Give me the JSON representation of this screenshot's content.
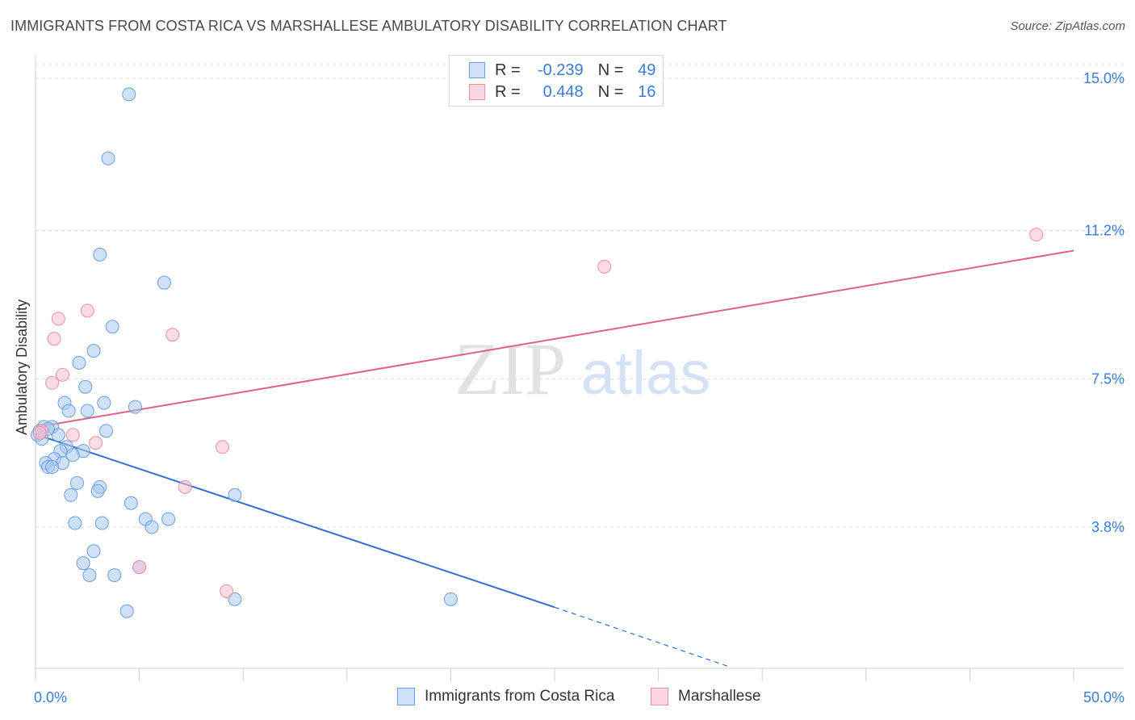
{
  "header": {
    "title": "IMMIGRANTS FROM COSTA RICA VS MARSHALLESE AMBULATORY DISABILITY CORRELATION CHART",
    "source": "Source: ZipAtlas.com"
  },
  "watermark": {
    "zip": "ZIP",
    "atlas": "atlas"
  },
  "legend": {
    "rows": [
      {
        "r_label": "R =",
        "r_value": "-0.239",
        "n_label": "N =",
        "n_value": "49",
        "color": "#a8c8f0",
        "border": "#6a9fe0"
      },
      {
        "r_label": "R =",
        "r_value": "0.448",
        "n_label": "N =",
        "n_value": "16",
        "color": "#f8bfd0",
        "border": "#e890a8"
      }
    ]
  },
  "bottom_legend": [
    {
      "label": "Immigrants from Costa Rica",
      "color": "#a8c8f0",
      "border": "#6a9fe0"
    },
    {
      "label": "Marshallese",
      "color": "#f8bfd0",
      "border": "#e890a8"
    }
  ],
  "chart_data": {
    "type": "scatter",
    "title": "IMMIGRANTS FROM COSTA RICA VS MARSHALLESE AMBULATORY DISABILITY CORRELATION CHART",
    "xlabel": "",
    "ylabel": "Ambulatory Disability",
    "xlim": [
      0,
      50
    ],
    "ylim": [
      0,
      15.5
    ],
    "x_tick_labels": [
      "0.0%",
      "50.0%"
    ],
    "y_ticks": [
      3.8,
      7.5,
      11.2,
      15.0
    ],
    "y_tick_labels": [
      "3.8%",
      "7.5%",
      "11.2%",
      "15.0%"
    ],
    "grid": true,
    "series": [
      {
        "name": "Immigrants from Costa Rica",
        "color": "#a8c8f0",
        "stroke": "#6a9fe0",
        "trend_color": "#2d6fd1",
        "trend": {
          "x0": 0.1,
          "y0": 6.1,
          "x1": 25.0,
          "y1": 1.8,
          "dash_to_x": 33.5,
          "dash_to_y": 0.3
        },
        "points": [
          [
            4.5,
            14.6
          ],
          [
            3.5,
            13.0
          ],
          [
            3.1,
            10.6
          ],
          [
            6.2,
            9.9
          ],
          [
            3.7,
            8.8
          ],
          [
            2.8,
            8.2
          ],
          [
            2.1,
            7.9
          ],
          [
            2.4,
            7.3
          ],
          [
            1.4,
            6.9
          ],
          [
            1.6,
            6.7
          ],
          [
            2.5,
            6.7
          ],
          [
            3.3,
            6.9
          ],
          [
            4.8,
            6.8
          ],
          [
            0.4,
            6.3
          ],
          [
            0.8,
            6.3
          ],
          [
            0.2,
            6.2
          ],
          [
            0.1,
            6.1
          ],
          [
            1.1,
            6.1
          ],
          [
            3.4,
            6.2
          ],
          [
            1.5,
            5.8
          ],
          [
            1.2,
            5.7
          ],
          [
            2.3,
            5.7
          ],
          [
            1.8,
            5.6
          ],
          [
            0.9,
            5.5
          ],
          [
            0.5,
            5.4
          ],
          [
            1.3,
            5.4
          ],
          [
            0.6,
            5.3
          ],
          [
            0.8,
            5.3
          ],
          [
            2.0,
            4.9
          ],
          [
            3.1,
            4.8
          ],
          [
            3.0,
            4.7
          ],
          [
            1.7,
            4.6
          ],
          [
            9.6,
            4.6
          ],
          [
            4.6,
            4.4
          ],
          [
            5.3,
            4.0
          ],
          [
            6.4,
            4.0
          ],
          [
            1.9,
            3.9
          ],
          [
            3.2,
            3.9
          ],
          [
            5.6,
            3.8
          ],
          [
            2.8,
            3.2
          ],
          [
            2.3,
            2.9
          ],
          [
            2.6,
            2.6
          ],
          [
            3.8,
            2.6
          ],
          [
            5.0,
            2.8
          ],
          [
            9.6,
            2.0
          ],
          [
            20.0,
            2.0
          ],
          [
            4.4,
            1.7
          ],
          [
            0.6,
            6.25
          ],
          [
            0.3,
            6.0
          ]
        ]
      },
      {
        "name": "Marshallese",
        "color": "#f8bfd0",
        "stroke": "#e890a8",
        "trend_color": "#e0608a",
        "trend": {
          "x0": 0.1,
          "y0": 6.3,
          "x1": 50.0,
          "y1": 10.7
        },
        "points": [
          [
            48.2,
            11.1
          ],
          [
            27.4,
            10.3
          ],
          [
            2.5,
            9.2
          ],
          [
            1.1,
            9.0
          ],
          [
            0.9,
            8.5
          ],
          [
            6.6,
            8.6
          ],
          [
            1.3,
            7.6
          ],
          [
            0.8,
            7.4
          ],
          [
            0.3,
            6.2
          ],
          [
            1.8,
            6.1
          ],
          [
            2.9,
            5.9
          ],
          [
            9.0,
            5.8
          ],
          [
            7.2,
            4.8
          ],
          [
            5.0,
            2.8
          ],
          [
            9.2,
            2.2
          ],
          [
            0.2,
            6.15
          ]
        ]
      }
    ]
  }
}
